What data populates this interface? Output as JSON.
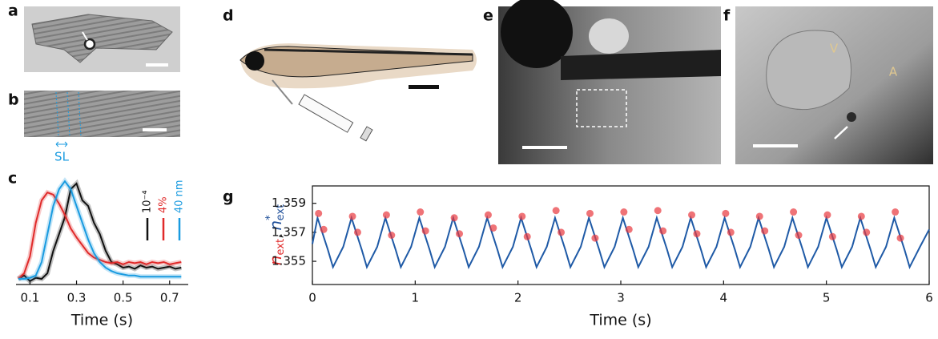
{
  "panel_labels": {
    "a": "a",
    "b": "b",
    "c": "c",
    "d": "d",
    "e": "e",
    "f": "f",
    "g": "g"
  },
  "annotations": {
    "sl": "SL",
    "ventricle": "V",
    "atrium": "A"
  },
  "chart_data": [
    {
      "type": "line",
      "xlabel": "Time (s)",
      "x": [
        0.05,
        0.075,
        0.1,
        0.125,
        0.15,
        0.175,
        0.2,
        0.225,
        0.25,
        0.275,
        0.3,
        0.325,
        0.35,
        0.375,
        0.4,
        0.425,
        0.45,
        0.475,
        0.5,
        0.525,
        0.55,
        0.575,
        0.6,
        0.625,
        0.65,
        0.675,
        0.7,
        0.725,
        0.75
      ],
      "xlim": [
        0.04,
        0.78
      ],
      "xticks": [
        0.1,
        0.3,
        0.5,
        0.7
      ],
      "ylim": [
        0,
        1
      ],
      "series": [
        {
          "name": "10⁻⁴",
          "color": "#111111",
          "values": [
            0.05,
            0.08,
            0.03,
            0.06,
            0.05,
            0.1,
            0.3,
            0.45,
            0.6,
            0.85,
            0.9,
            0.75,
            0.7,
            0.55,
            0.45,
            0.3,
            0.2,
            0.18,
            0.15,
            0.16,
            0.14,
            0.17,
            0.15,
            0.16,
            0.14,
            0.15,
            0.16,
            0.14,
            0.15
          ]
        },
        {
          "name": "4%",
          "color": "#e02a2a",
          "values": [
            0.05,
            0.1,
            0.25,
            0.55,
            0.75,
            0.82,
            0.8,
            0.72,
            0.62,
            0.5,
            0.42,
            0.35,
            0.28,
            0.24,
            0.22,
            0.2,
            0.19,
            0.2,
            0.18,
            0.2,
            0.19,
            0.2,
            0.18,
            0.2,
            0.19,
            0.2,
            0.18,
            0.19,
            0.2
          ]
        },
        {
          "name": "40 nm",
          "color": "#1a9be0",
          "values": [
            0.05,
            0.05,
            0.06,
            0.08,
            0.2,
            0.45,
            0.7,
            0.85,
            0.92,
            0.85,
            0.7,
            0.55,
            0.4,
            0.28,
            0.2,
            0.15,
            0.12,
            0.1,
            0.09,
            0.08,
            0.08,
            0.07,
            0.07,
            0.07,
            0.07,
            0.07,
            0.07,
            0.07,
            0.07
          ]
        }
      ]
    },
    {
      "type": "line",
      "xlabel": "Time (s)",
      "ylabel": [
        {
          "text": "n",
          "sub": "ext",
          "color": "#e02a2a"
        },
        {
          "text": "n",
          "sup": "*",
          "sub": "ext",
          "color": "#1f4f9a"
        }
      ],
      "ylabel_separator": ",",
      "xlim": [
        0,
        6
      ],
      "xticks": [
        0,
        1,
        2,
        3,
        4,
        5,
        6
      ],
      "ylim": [
        1.3534,
        1.3602
      ],
      "yticks": [
        1.355,
        1.357,
        1.359
      ],
      "series": [
        {
          "color": "#1f5aa6",
          "style": "line",
          "x": [
            0,
            0.05,
            0.15,
            0.2,
            0.3,
            0.38,
            0.48,
            0.53,
            0.63,
            0.71,
            0.81,
            0.86,
            0.96,
            1.04,
            1.14,
            1.19,
            1.29,
            1.37,
            1.47,
            1.52,
            1.62,
            1.7,
            1.8,
            1.85,
            1.95,
            2.03,
            2.13,
            2.18,
            2.28,
            2.36,
            2.46,
            2.51,
            2.61,
            2.69,
            2.79,
            2.84,
            2.94,
            3.02,
            3.12,
            3.17,
            3.27,
            3.35,
            3.45,
            3.5,
            3.6,
            3.68,
            3.78,
            3.83,
            3.93,
            4.01,
            4.11,
            4.16,
            4.26,
            4.34,
            4.44,
            4.49,
            4.59,
            4.67,
            4.77,
            4.82,
            4.92,
            5,
            5.1,
            5.15,
            5.25,
            5.33,
            5.43,
            5.48,
            5.58,
            5.66,
            5.76,
            5.81,
            5.91,
            6
          ],
          "values": [
            1.3562,
            1.358,
            1.3558,
            1.3546,
            1.356,
            1.358,
            1.3558,
            1.3546,
            1.356,
            1.358,
            1.3558,
            1.3546,
            1.356,
            1.358,
            1.3558,
            1.3546,
            1.356,
            1.358,
            1.3558,
            1.3546,
            1.356,
            1.358,
            1.3558,
            1.3546,
            1.356,
            1.358,
            1.3558,
            1.3546,
            1.356,
            1.358,
            1.3558,
            1.3546,
            1.356,
            1.358,
            1.3558,
            1.3546,
            1.356,
            1.358,
            1.3558,
            1.3546,
            1.356,
            1.358,
            1.3558,
            1.3546,
            1.356,
            1.358,
            1.3558,
            1.3546,
            1.356,
            1.358,
            1.3558,
            1.3546,
            1.356,
            1.358,
            1.3558,
            1.3546,
            1.356,
            1.358,
            1.3558,
            1.3546,
            1.356,
            1.358,
            1.3558,
            1.3546,
            1.356,
            1.358,
            1.3558,
            1.3546,
            1.356,
            1.358,
            1.3558,
            1.3546,
            1.356,
            1.3572
          ]
        },
        {
          "color": "#e8383d",
          "style": "scatter",
          "x": [
            0.06,
            0.11,
            0.39,
            0.44,
            0.72,
            0.77,
            1.05,
            1.1,
            1.38,
            1.43,
            1.71,
            1.76,
            2.04,
            2.09,
            2.37,
            2.42,
            2.7,
            2.75,
            3.03,
            3.08,
            3.36,
            3.41,
            3.69,
            3.74,
            4.02,
            4.07,
            4.35,
            4.4,
            4.68,
            4.73,
            5.01,
            5.06,
            5.34,
            5.39,
            5.67,
            5.72
          ],
          "values": [
            1.3583,
            1.3572,
            1.3581,
            1.357,
            1.3582,
            1.3568,
            1.3584,
            1.3571,
            1.358,
            1.3569,
            1.3582,
            1.3573,
            1.3581,
            1.3567,
            1.3585,
            1.357,
            1.3583,
            1.3566,
            1.3584,
            1.3572,
            1.3585,
            1.3571,
            1.3582,
            1.3569,
            1.3583,
            1.357,
            1.3581,
            1.3571,
            1.3584,
            1.3568,
            1.3582,
            1.3567,
            1.3581,
            1.357,
            1.3584,
            1.3566
          ]
        }
      ]
    }
  ]
}
